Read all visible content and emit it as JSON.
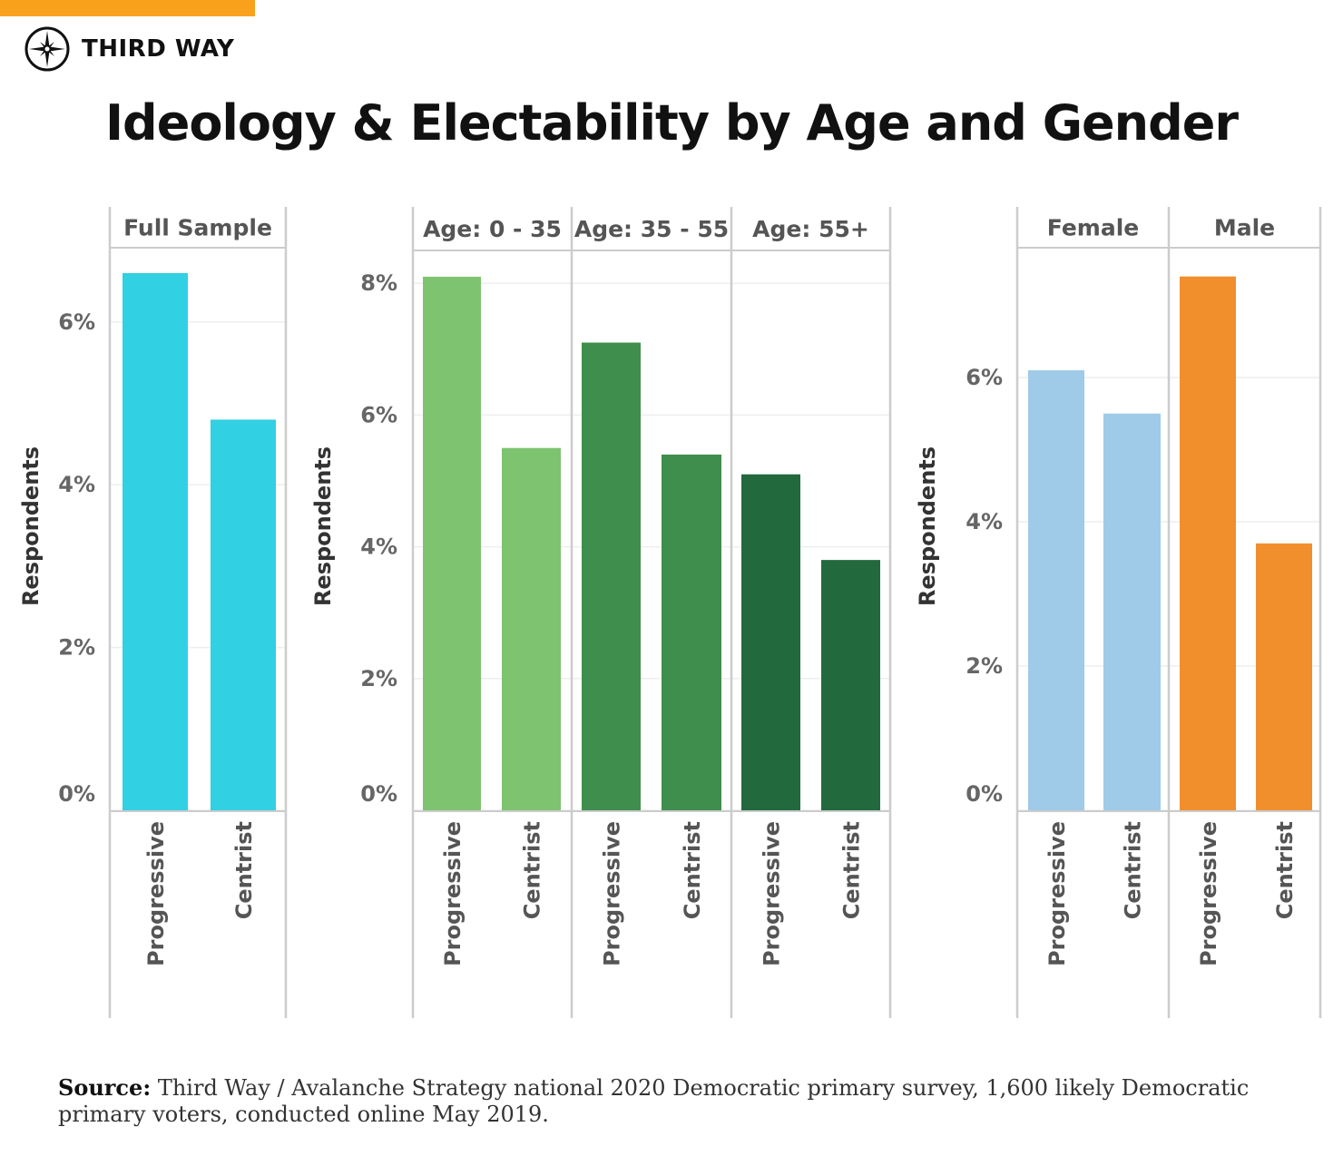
{
  "brand": {
    "name": "THIRD WAY",
    "accent": "#f9a11b"
  },
  "title": "Ideology & Electability by Age and Gender",
  "source": {
    "label": "Source:",
    "text": "Third Way / Avalanche Strategy national 2020 Democratic primary survey, 1,600 likely Democratic primary voters, conducted online May 2019."
  },
  "chart_data": [
    {
      "type": "bar",
      "ylabel": "Respondents",
      "yticks": [
        "0%",
        "2%",
        "4%",
        "6%"
      ],
      "ytick_values": [
        0,
        2,
        4,
        6
      ],
      "ylim": [
        0,
        6.8
      ],
      "facets": [
        {
          "label": "Full Sample",
          "color": "#31d0e2",
          "categories": [
            "Progressive",
            "Centrist"
          ],
          "values": [
            6.6,
            4.8
          ]
        }
      ]
    },
    {
      "type": "bar",
      "ylabel": "Respondents",
      "yticks": [
        "0%",
        "2%",
        "4%",
        "6%",
        "8%"
      ],
      "ytick_values": [
        0,
        2,
        4,
        6,
        8
      ],
      "ylim": [
        0,
        8.4
      ],
      "facets": [
        {
          "label": "Age: 0 - 35",
          "color": "#7ec36f",
          "categories": [
            "Progressive",
            "Centrist"
          ],
          "values": [
            8.1,
            5.5
          ]
        },
        {
          "label": "Age: 35 - 55",
          "color": "#3f8e4d",
          "categories": [
            "Progressive",
            "Centrist"
          ],
          "values": [
            7.1,
            5.4
          ]
        },
        {
          "label": "Age: 55+",
          "color": "#226a3d",
          "categories": [
            "Progressive",
            "Centrist"
          ],
          "values": [
            5.1,
            3.8
          ]
        }
      ]
    },
    {
      "type": "bar",
      "ylabel": "Respondents",
      "yticks": [
        "0%",
        "2%",
        "4%",
        "6%"
      ],
      "ytick_values": [
        0,
        2,
        4,
        6
      ],
      "ylim": [
        0,
        7.7
      ],
      "facets": [
        {
          "label": "Female",
          "color": "#9fcbe8",
          "categories": [
            "Progressive",
            "Centrist"
          ],
          "values": [
            6.1,
            5.5
          ]
        },
        {
          "label": "Male",
          "color": "#f18f2d",
          "categories": [
            "Progressive",
            "Centrist"
          ],
          "values": [
            7.4,
            3.7
          ]
        }
      ]
    }
  ]
}
